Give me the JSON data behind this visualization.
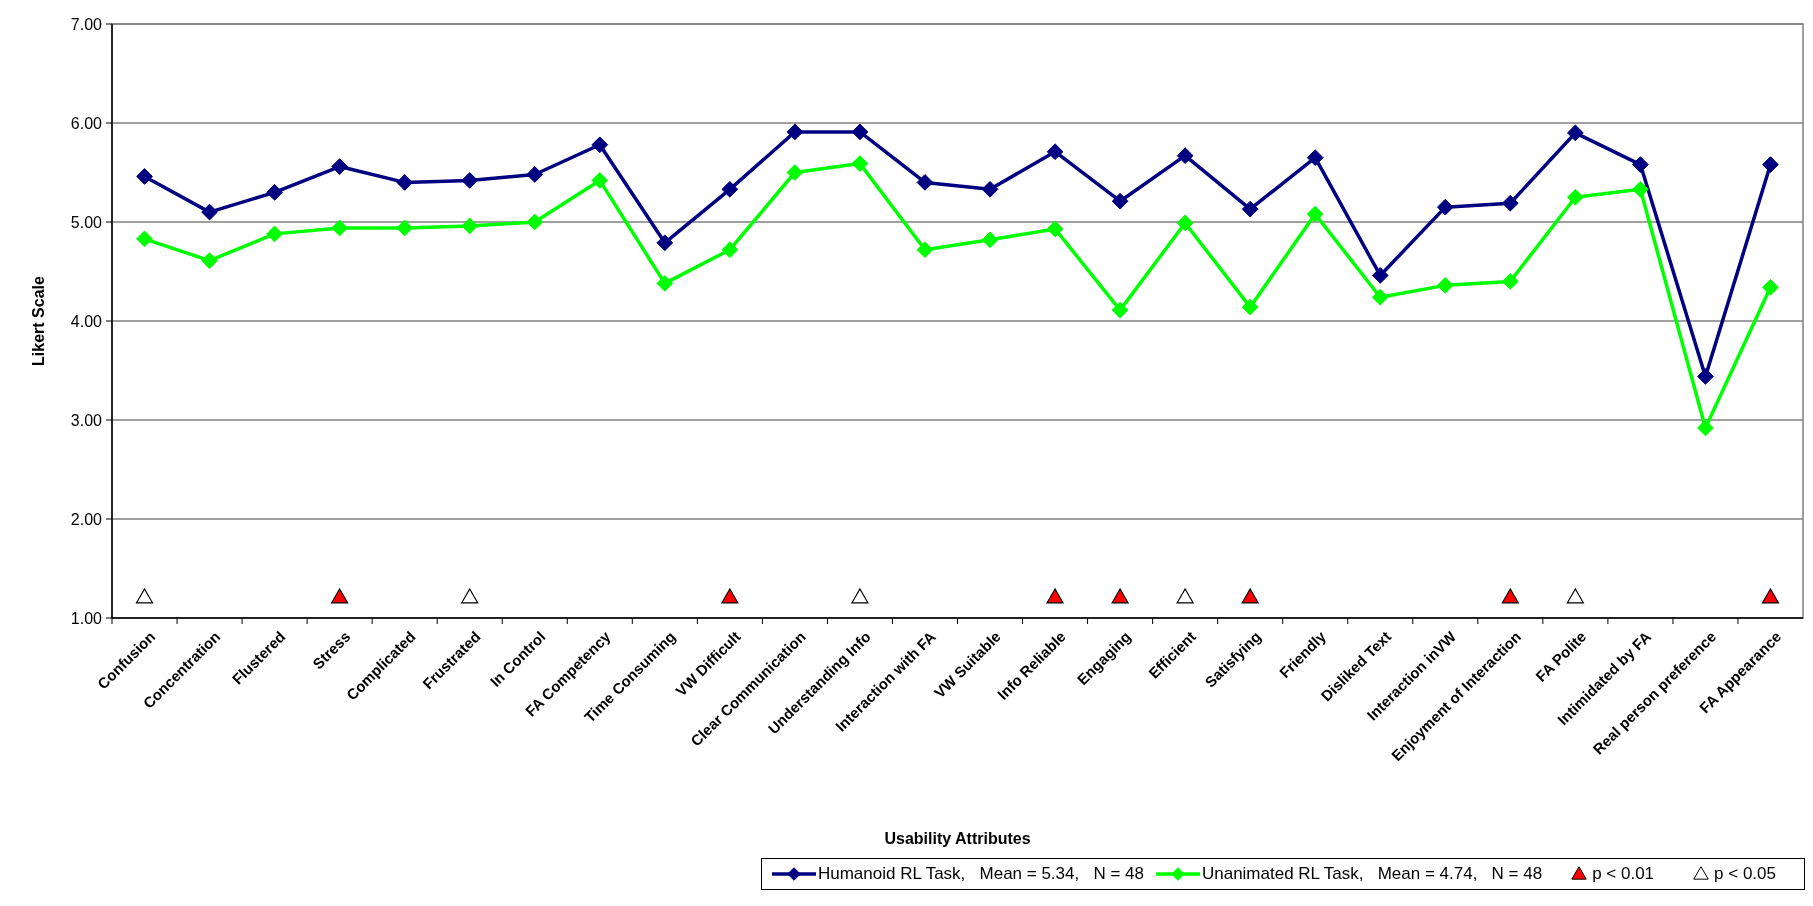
{
  "chart_data": {
    "type": "line",
    "xlabel": "Usability Attributes",
    "ylabel": "Likert Scale",
    "categories": [
      "Confusion",
      "Concentration",
      "Flustered",
      "Stress",
      "Complicated",
      "Frustrated",
      "In Control",
      "FA Competency",
      "Time Consuming",
      "VW Difficult",
      "Clear Communication",
      "Understanding Info",
      "Interaction with FA",
      "VW Suitable",
      "Info Reliable",
      "Engaging",
      "Efficient",
      "Satisfying",
      "Friendly",
      "Disliked Text",
      "Interaction inVW",
      "Enjoyment of Interaction",
      "FA Polite",
      "Intimidated by FA",
      "Real person preference",
      "FA Appearance"
    ],
    "series": [
      {
        "name": "Humanoid RL Task,   Mean = 5.34,   N = 48",
        "color": "#000080",
        "marker": "diamond",
        "values": [
          5.46,
          5.1,
          5.3,
          5.56,
          5.4,
          5.42,
          5.48,
          5.78,
          4.79,
          5.33,
          5.91,
          5.91,
          5.4,
          5.33,
          5.71,
          5.21,
          5.67,
          5.13,
          5.65,
          4.46,
          5.15,
          5.19,
          5.9,
          5.58,
          3.44,
          5.58
        ]
      },
      {
        "name": "Unanimated RL Task,   Mean = 4.74,   N = 48",
        "color": "#00ff00",
        "marker": "diamond",
        "values": [
          4.83,
          4.61,
          4.88,
          4.94,
          4.94,
          4.96,
          5.0,
          5.42,
          4.38,
          4.72,
          5.5,
          5.59,
          4.72,
          4.82,
          4.93,
          4.11,
          4.99,
          4.14,
          5.08,
          4.24,
          4.36,
          4.4,
          5.25,
          5.33,
          2.92,
          4.34
        ]
      },
      {
        "name": "p < 0.01",
        "type": "scatter",
        "marker": "triangle",
        "color": "#ff0000",
        "x": [
          "Stress",
          "VW Difficult",
          "Info Reliable",
          "Engaging",
          "Satisfying",
          "Enjoyment of Interaction",
          "FA Appearance"
        ],
        "values": [
          1.2,
          1.2,
          1.2,
          1.2,
          1.2,
          1.2,
          1.2
        ]
      },
      {
        "name": "p < 0.05",
        "type": "scatter",
        "marker": "triangle",
        "color": "#ffffff",
        "x": [
          "Confusion",
          "Frustrated",
          "Understanding Info",
          "Efficient",
          "FA Polite"
        ],
        "values": [
          1.2,
          1.2,
          1.2,
          1.2,
          1.2
        ]
      }
    ],
    "ylim": [
      1,
      7
    ],
    "yticks": [
      {
        "value": 1,
        "label": "1.00"
      },
      {
        "value": 2,
        "label": "2.00"
      },
      {
        "value": 3,
        "label": "3.00"
      },
      {
        "value": 4,
        "label": "4.00"
      },
      {
        "value": 5,
        "label": "5.00"
      },
      {
        "value": 6,
        "label": "6.00"
      },
      {
        "value": 7,
        "label": "7.00"
      }
    ],
    "grid": "y",
    "legend": "bottom"
  }
}
